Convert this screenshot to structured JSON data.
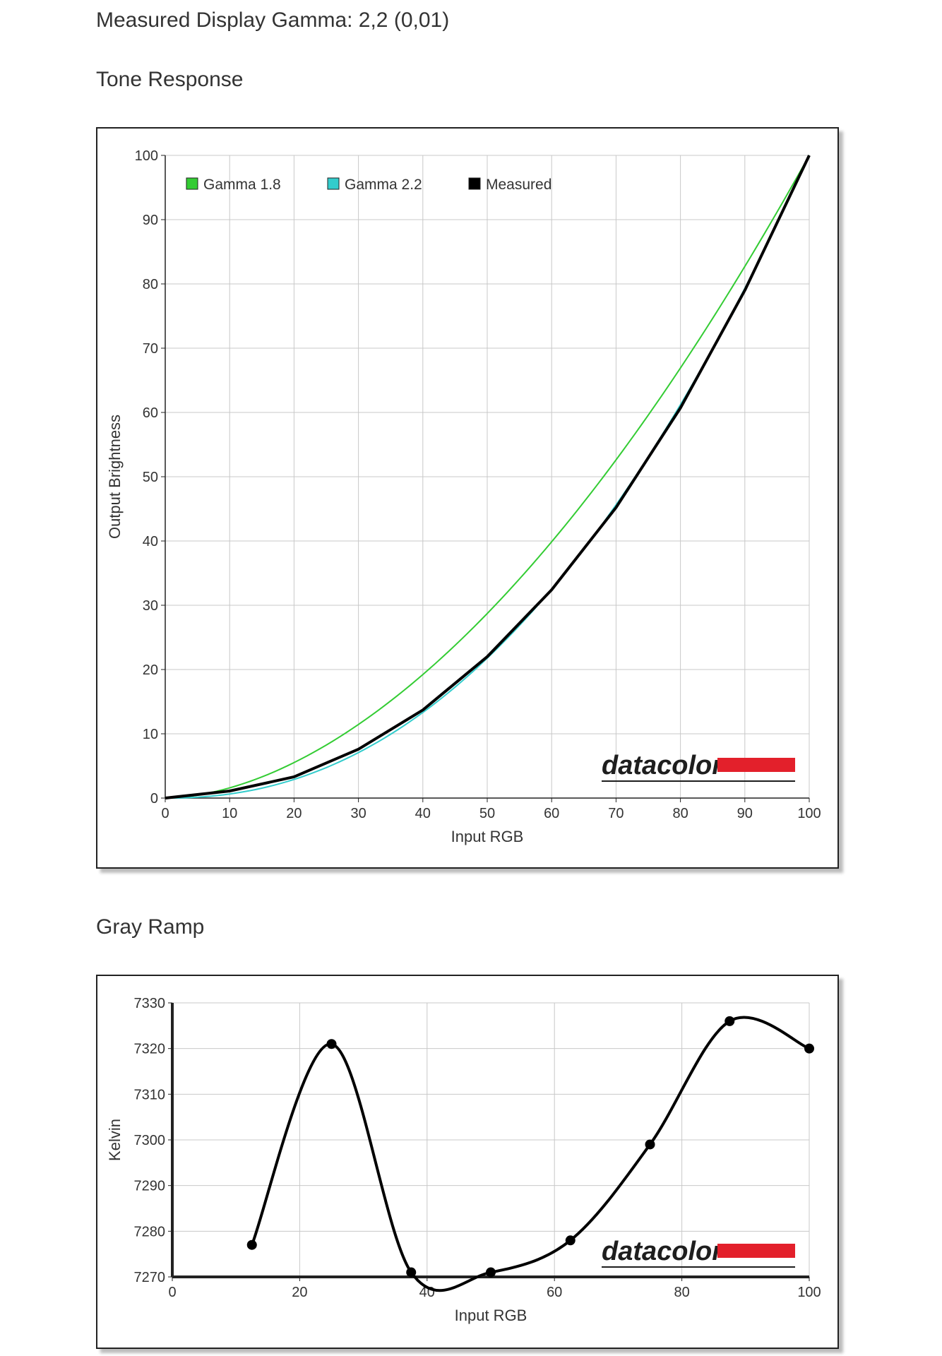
{
  "page": {
    "measured_gamma_text": "Measured Display Gamma: 2,2 (0,01)",
    "tone_section_title": "Tone Response",
    "gray_section_title": "Gray Ramp"
  },
  "logo": {
    "text": "datacolor",
    "bar_color": "#e3202b"
  },
  "chart_data": [
    {
      "type": "line",
      "title": "Tone Response",
      "xlabel": "Input RGB",
      "ylabel": "Output Brightness",
      "xlim": [
        0,
        100
      ],
      "ylim": [
        0,
        100
      ],
      "x_ticks": [
        0,
        10,
        20,
        30,
        40,
        50,
        60,
        70,
        80,
        90,
        100
      ],
      "y_ticks": [
        0,
        10,
        20,
        30,
        40,
        50,
        60,
        70,
        80,
        90,
        100
      ],
      "grid": true,
      "legend_position": "top-left",
      "series": [
        {
          "name": "Gamma 1.8",
          "color": "#33cc33",
          "gamma": 1.8,
          "x": [
            0,
            10,
            20,
            30,
            40,
            50,
            60,
            70,
            80,
            90,
            100
          ],
          "y": [
            0,
            1.6,
            5.5,
            11.5,
            19.2,
            28.7,
            39.9,
            52.6,
            66.9,
            82.7,
            100
          ]
        },
        {
          "name": "Gamma 2.2",
          "color": "#33cccc",
          "gamma": 2.2,
          "x": [
            0,
            10,
            20,
            30,
            40,
            50,
            60,
            70,
            80,
            90,
            100
          ],
          "y": [
            0,
            0.6,
            2.9,
            7.1,
            13.3,
            21.8,
            32.5,
            45.6,
            61.2,
            79.3,
            100
          ]
        },
        {
          "name": "Measured",
          "color": "#000000",
          "x": [
            0,
            10,
            20,
            30,
            40,
            50,
            60,
            70,
            80,
            90,
            100
          ],
          "y": [
            0,
            1.1,
            3.3,
            7.6,
            13.7,
            22.0,
            32.4,
            45.2,
            60.7,
            79.0,
            100
          ]
        }
      ]
    },
    {
      "type": "line",
      "title": "Gray Ramp",
      "xlabel": "Input RGB",
      "ylabel": "Kelvin",
      "xlim": [
        0,
        100
      ],
      "ylim": [
        7270,
        7330
      ],
      "x_ticks": [
        0,
        20,
        40,
        60,
        80,
        100
      ],
      "y_ticks": [
        7270,
        7280,
        7290,
        7300,
        7310,
        7320,
        7330
      ],
      "grid": true,
      "series": [
        {
          "color": "#000000",
          "x": [
            12.5,
            25,
            37.5,
            50,
            62.5,
            75,
            87.5,
            100
          ],
          "y": [
            7277,
            7321,
            7271,
            7271,
            7278,
            7299,
            7326,
            7320
          ]
        }
      ]
    }
  ]
}
